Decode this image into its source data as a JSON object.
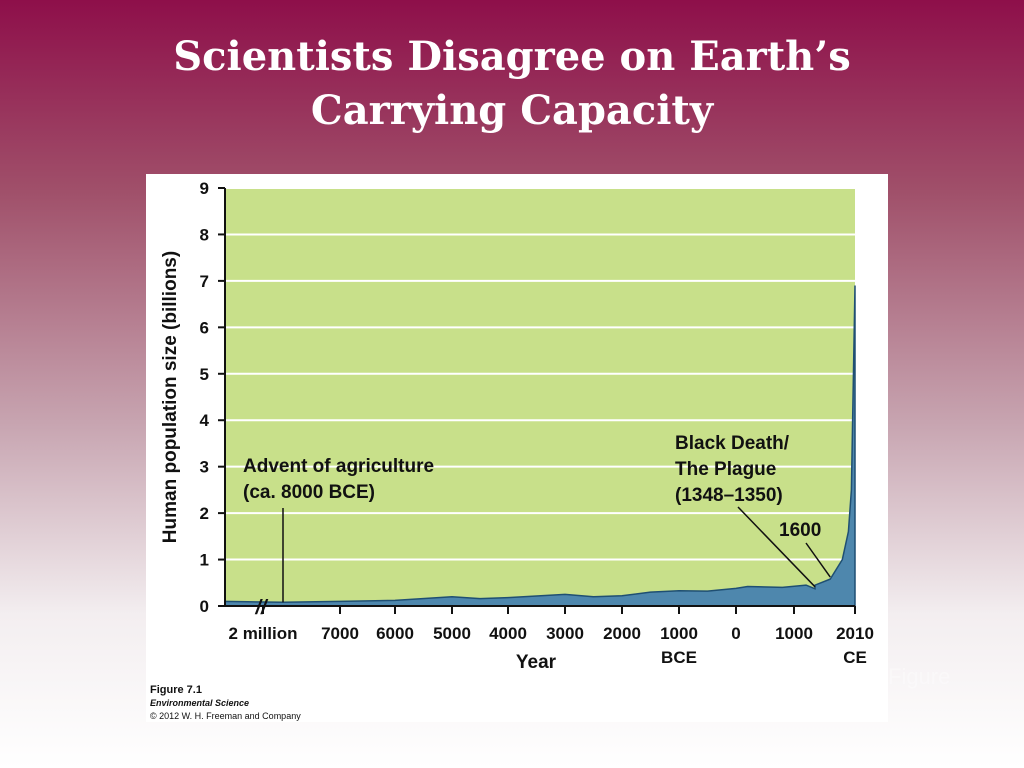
{
  "slide": {
    "title_line1": "Scientists Disagree on Earth’s",
    "title_line2": "Carrying Capacity",
    "ghost_text": "Figure"
  },
  "caption": {
    "figure": "Figure 7.1",
    "book": "Environmental Science",
    "copyright": "© 2012 W. H. Freeman and Company"
  },
  "colors": {
    "plot_bg": "#c8e08a",
    "area_fill": "#4e87ad",
    "area_stroke": "#1f4f73",
    "gridline": "#ffffff"
  },
  "chart_data": {
    "type": "area",
    "ylabel": "Human population size (billions)",
    "xlabel": "Year",
    "ylim": [
      0,
      9
    ],
    "y_ticks": [
      "0",
      "1",
      "2",
      "3",
      "4",
      "5",
      "6",
      "7",
      "8",
      "9"
    ],
    "grid": true,
    "x_ticks": [
      {
        "label": "2 million",
        "label2": ""
      },
      {
        "label": "7000",
        "label2": ""
      },
      {
        "label": "6000",
        "label2": ""
      },
      {
        "label": "5000",
        "label2": ""
      },
      {
        "label": "4000",
        "label2": ""
      },
      {
        "label": "3000",
        "label2": ""
      },
      {
        "label": "2000",
        "label2": ""
      },
      {
        "label": "1000",
        "label2": "BCE"
      },
      {
        "label": "0",
        "label2": ""
      },
      {
        "label": "1000",
        "label2": ""
      },
      {
        "label": "2010",
        "label2": "CE"
      }
    ],
    "series": [
      {
        "points": [
          {
            "x": "2 million BCE",
            "y": 0.1
          },
          {
            "x": "8000 BCE",
            "y": 0.08
          },
          {
            "x": "7000 BCE",
            "y": 0.1
          },
          {
            "x": "6000 BCE",
            "y": 0.12
          },
          {
            "x": "5000 BCE",
            "y": 0.2
          },
          {
            "x": "4500 BCE",
            "y": 0.16
          },
          {
            "x": "4000 BCE",
            "y": 0.18
          },
          {
            "x": "3000 BCE",
            "y": 0.25
          },
          {
            "x": "2500 BCE",
            "y": 0.2
          },
          {
            "x": "2000 BCE",
            "y": 0.22
          },
          {
            "x": "1500 BCE",
            "y": 0.3
          },
          {
            "x": "1000 BCE",
            "y": 0.33
          },
          {
            "x": "500 BCE",
            "y": 0.32
          },
          {
            "x": "0",
            "y": 0.38
          },
          {
            "x": "200 CE",
            "y": 0.42
          },
          {
            "x": "800 CE",
            "y": 0.4
          },
          {
            "x": "1200 CE",
            "y": 0.45
          },
          {
            "x": "1348 CE",
            "y": 0.37
          },
          {
            "x": "1350 CE",
            "y": 0.45
          },
          {
            "x": "1600 CE",
            "y": 0.58
          },
          {
            "x": "1800 CE",
            "y": 1.0
          },
          {
            "x": "1900 CE",
            "y": 1.6
          },
          {
            "x": "1950 CE",
            "y": 2.5
          },
          {
            "x": "2010 CE",
            "y": 6.9
          }
        ]
      }
    ],
    "annotations": [
      {
        "lines": [
          "Advent of agriculture",
          "(ca. 8000 BCE)"
        ],
        "x": "8000 BCE"
      },
      {
        "lines": [
          "Black Death/",
          "The Plague",
          "(1348–1350)"
        ],
        "x": "1348 CE"
      },
      {
        "lines": [
          "1600"
        ],
        "x": "1600 CE"
      }
    ],
    "axis_break": "//"
  }
}
